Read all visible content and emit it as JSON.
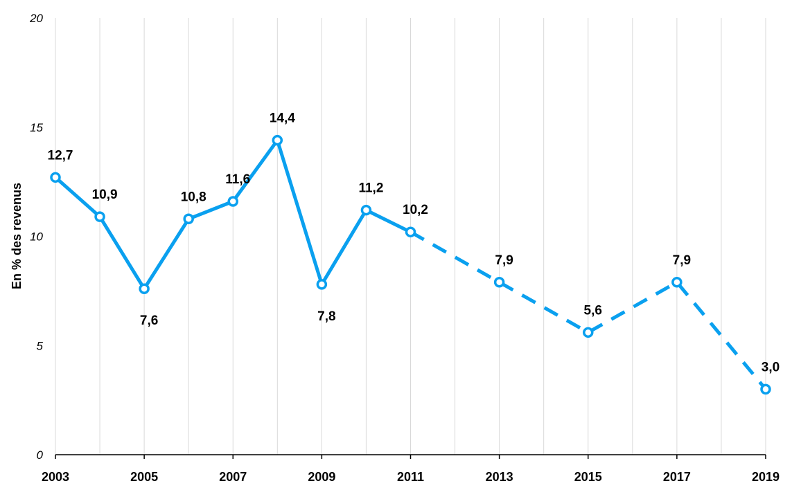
{
  "chart_data": {
    "type": "line",
    "ylabel": "En % des revenus",
    "ylim": [
      0,
      20
    ],
    "yticks": [
      0,
      5,
      10,
      15,
      20
    ],
    "ytick_labels": [
      "0",
      "5",
      "10",
      "15",
      "20"
    ],
    "xlim": [
      2003,
      2019
    ],
    "xticks": [
      2003,
      2005,
      2007,
      2009,
      2011,
      2013,
      2015,
      2017,
      2019
    ],
    "xtick_labels": [
      "2003",
      "2005",
      "2007",
      "2009",
      "2011",
      "2013",
      "2015",
      "2017",
      "2019"
    ],
    "grid": "vertical",
    "color": "#0aa0ef",
    "series": [
      {
        "style": "solid",
        "points": [
          {
            "x": 2003,
            "y": 12.7,
            "label": "12,7",
            "label_pos": "above"
          },
          {
            "x": 2004,
            "y": 10.9,
            "label": "10,9",
            "label_pos": "above"
          },
          {
            "x": 2005,
            "y": 7.6,
            "label": "7,6",
            "label_pos": "below"
          },
          {
            "x": 2006,
            "y": 10.8,
            "label": "10,8",
            "label_pos": "above"
          },
          {
            "x": 2007,
            "y": 11.6,
            "label": "11,6",
            "label_pos": "above"
          },
          {
            "x": 2008,
            "y": 14.4,
            "label": "14,4",
            "label_pos": "above"
          },
          {
            "x": 2009,
            "y": 7.8,
            "label": "7,8",
            "label_pos": "below"
          },
          {
            "x": 2010,
            "y": 11.2,
            "label": "11,2",
            "label_pos": "above"
          },
          {
            "x": 2011,
            "y": 10.2,
            "label": "10,2",
            "label_pos": "above"
          }
        ]
      },
      {
        "style": "dashed",
        "points": [
          {
            "x": 2011,
            "y": 10.2,
            "label": "",
            "label_pos": "above"
          },
          {
            "x": 2013,
            "y": 7.9,
            "label": "7,9",
            "label_pos": "above"
          },
          {
            "x": 2015,
            "y": 5.6,
            "label": "5,6",
            "label_pos": "above"
          },
          {
            "x": 2017,
            "y": 7.9,
            "label": "7,9",
            "label_pos": "above"
          },
          {
            "x": 2019,
            "y": 3.0,
            "label": "3,0",
            "label_pos": "above"
          }
        ]
      }
    ]
  }
}
